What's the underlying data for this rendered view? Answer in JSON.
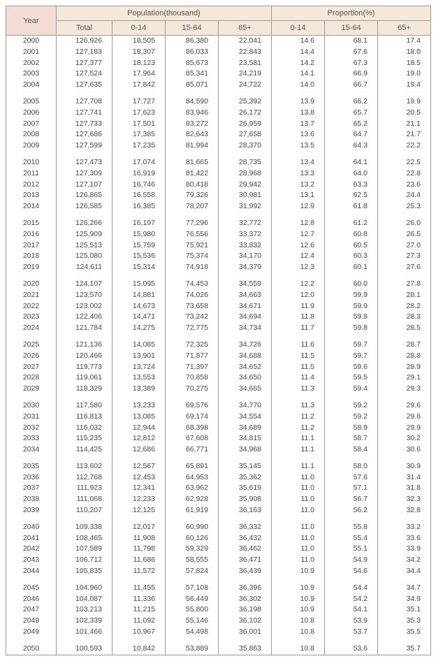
{
  "table": {
    "header": {
      "year": "Year",
      "population_group": "Population(thousand)",
      "proportion_group": "Proportion(%)",
      "total": "Total",
      "age_0_14": "0-14",
      "age_15_64": "15-64",
      "age_65p": "65+"
    },
    "style": {
      "header_bg": "#f4e8d8",
      "year_header_bg": "#f2dcd5",
      "border_color": "#999999",
      "text_color": "#444444",
      "font_size_body": 10.5,
      "font_size_header": 11,
      "row_height": 15.8,
      "spacer_height": 8,
      "col_widths": {
        "year": 72,
        "total": 80,
        "age": 76
      }
    },
    "groups": [
      [
        {
          "year": "2000",
          "total": "126,926",
          "p0": "18,505",
          "p1": "86,380",
          "p2": "22,041",
          "r0": "14.6",
          "r1": "68.1",
          "r2": "17.4"
        },
        {
          "year": "2001",
          "total": "127,183",
          "p0": "18,307",
          "p1": "86,033",
          "p2": "22,843",
          "r0": "14.4",
          "r1": "67.6",
          "r2": "18.0"
        },
        {
          "year": "2002",
          "total": "127,377",
          "p0": "18,123",
          "p1": "85,673",
          "p2": "23,581",
          "r0": "14.2",
          "r1": "67.3",
          "r2": "18.5"
        },
        {
          "year": "2003",
          "total": "127,524",
          "p0": "17,964",
          "p1": "85,341",
          "p2": "24,219",
          "r0": "14.1",
          "r1": "66.9",
          "r2": "19.0"
        },
        {
          "year": "2004",
          "total": "127,635",
          "p0": "17,842",
          "p1": "85,071",
          "p2": "24,722",
          "r0": "14.0",
          "r1": "66.7",
          "r2": "19.4"
        }
      ],
      [
        {
          "year": "2005",
          "total": "127,708",
          "p0": "17,727",
          "p1": "84,590",
          "p2": "25,392",
          "r0": "13.9",
          "r1": "66.2",
          "r2": "19.9"
        },
        {
          "year": "2006",
          "total": "127,741",
          "p0": "17,623",
          "p1": "83,946",
          "p2": "26,172",
          "r0": "13.8",
          "r1": "65.7",
          "r2": "20.5"
        },
        {
          "year": "2007",
          "total": "127,733",
          "p0": "17,501",
          "p1": "83,272",
          "p2": "26,959",
          "r0": "13.7",
          "r1": "65.2",
          "r2": "21.1"
        },
        {
          "year": "2008",
          "total": "127,686",
          "p0": "17,385",
          "p1": "82,643",
          "p2": "27,658",
          "r0": "13.6",
          "r1": "64.7",
          "r2": "21.7"
        },
        {
          "year": "2009",
          "total": "127,599",
          "p0": "17,235",
          "p1": "81,994",
          "p2": "28,370",
          "r0": "13.5",
          "r1": "64.3",
          "r2": "22.2"
        }
      ],
      [
        {
          "year": "2010",
          "total": "127,473",
          "p0": "17,074",
          "p1": "81,665",
          "p2": "28,735",
          "r0": "13.4",
          "r1": "64.1",
          "r2": "22.5"
        },
        {
          "year": "2011",
          "total": "127,309",
          "p0": "16,919",
          "p1": "81,422",
          "p2": "28,968",
          "r0": "13.3",
          "r1": "64.0",
          "r2": "22.8"
        },
        {
          "year": "2012",
          "total": "127,107",
          "p0": "16,746",
          "p1": "80,418",
          "p2": "29,942",
          "r0": "13.2",
          "r1": "63.3",
          "r2": "23.6"
        },
        {
          "year": "2013",
          "total": "126,865",
          "p0": "16,558",
          "p1": "79,326",
          "p2": "30,981",
          "r0": "13.1",
          "r1": "62.5",
          "r2": "24.4"
        },
        {
          "year": "2014",
          "total": "126,585",
          "p0": "16,385",
          "p1": "78,207",
          "p2": "31,992",
          "r0": "12.9",
          "r1": "61.8",
          "r2": "25.3"
        }
      ],
      [
        {
          "year": "2015",
          "total": "126,266",
          "p0": "16,197",
          "p1": "77,296",
          "p2": "32,772",
          "r0": "12.8",
          "r1": "61.2",
          "r2": "26.0"
        },
        {
          "year": "2016",
          "total": "125,909",
          "p0": "15,980",
          "p1": "76,556",
          "p2": "33,372",
          "r0": "12.7",
          "r1": "60.8",
          "r2": "26.5"
        },
        {
          "year": "2017",
          "total": "125,513",
          "p0": "15,759",
          "p1": "75,921",
          "p2": "33,832",
          "r0": "12.6",
          "r1": "60.5",
          "r2": "27.0"
        },
        {
          "year": "2018",
          "total": "125,080",
          "p0": "15,536",
          "p1": "75,374",
          "p2": "34,170",
          "r0": "12.4",
          "r1": "60.3",
          "r2": "27.3"
        },
        {
          "year": "2019",
          "total": "124,611",
          "p0": "15,314",
          "p1": "74,918",
          "p2": "34,379",
          "r0": "12.3",
          "r1": "60.1",
          "r2": "27.6"
        }
      ],
      [
        {
          "year": "2020",
          "total": "124,107",
          "p0": "15,095",
          "p1": "74,453",
          "p2": "34,559",
          "r0": "12.2",
          "r1": "60.0",
          "r2": "27.8"
        },
        {
          "year": "2021",
          "total": "123,570",
          "p0": "14,881",
          "p1": "74,026",
          "p2": "34,663",
          "r0": "12.0",
          "r1": "59.9",
          "r2": "28.1"
        },
        {
          "year": "2022",
          "total": "123,002",
          "p0": "14,673",
          "p1": "73,658",
          "p2": "34,671",
          "r0": "11.9",
          "r1": "59.9",
          "r2": "28.2"
        },
        {
          "year": "2023",
          "total": "122,406",
          "p0": "14,471",
          "p1": "73,242",
          "p2": "34,694",
          "r0": "11.8",
          "r1": "59.8",
          "r2": "28.3"
        },
        {
          "year": "2024",
          "total": "121,784",
          "p0": "14,275",
          "p1": "72,775",
          "p2": "34,734",
          "r0": "11.7",
          "r1": "59.8",
          "r2": "28.5"
        }
      ],
      [
        {
          "year": "2025",
          "total": "121,136",
          "p0": "14,085",
          "p1": "72,325",
          "p2": "34,726",
          "r0": "11.6",
          "r1": "59.7",
          "r2": "28.7"
        },
        {
          "year": "2026",
          "total": "120,466",
          "p0": "13,901",
          "p1": "71,877",
          "p2": "34,688",
          "r0": "11.5",
          "r1": "59.7",
          "r2": "28.8"
        },
        {
          "year": "2027",
          "total": "119,773",
          "p0": "13,724",
          "p1": "71,397",
          "p2": "34,652",
          "r0": "11.5",
          "r1": "59.6",
          "r2": "28.9"
        },
        {
          "year": "2028",
          "total": "119,061",
          "p0": "13,553",
          "p1": "70,858",
          "p2": "34,650",
          "r0": "11.4",
          "r1": "59.5",
          "r2": "29.1"
        },
        {
          "year": "2029",
          "total": "118,329",
          "p0": "13,389",
          "p1": "70,275",
          "p2": "34,665",
          "r0": "11.3",
          "r1": "59.4",
          "r2": "29.3"
        }
      ],
      [
        {
          "year": "2030",
          "total": "117,580",
          "p0": "13,233",
          "p1": "69,576",
          "p2": "34,770",
          "r0": "11.3",
          "r1": "59.2",
          "r2": "29.6"
        },
        {
          "year": "2031",
          "total": "116,813",
          "p0": "13,085",
          "p1": "69,174",
          "p2": "34,554",
          "r0": "11.2",
          "r1": "59.2",
          "r2": "29.6"
        },
        {
          "year": "2032",
          "total": "116,032",
          "p0": "12,944",
          "p1": "68,398",
          "p2": "34,689",
          "r0": "11.2",
          "r1": "58.9",
          "r2": "29.9"
        },
        {
          "year": "2033",
          "total": "115,235",
          "p0": "12,812",
          "p1": "67,608",
          "p2": "34,815",
          "r0": "11.1",
          "r1": "58.7",
          "r2": "30.2"
        },
        {
          "year": "2034",
          "total": "114,425",
          "p0": "12,686",
          "p1": "66,771",
          "p2": "34,968",
          "r0": "11.1",
          "r1": "58.4",
          "r2": "30.6"
        }
      ],
      [
        {
          "year": "2035",
          "total": "113,602",
          "p0": "12,567",
          "p1": "65,891",
          "p2": "35,145",
          "r0": "11.1",
          "r1": "58.0",
          "r2": "30.9"
        },
        {
          "year": "2036",
          "total": "112,768",
          "p0": "12,453",
          "p1": "64,953",
          "p2": "35,362",
          "r0": "11.0",
          "r1": "57.6",
          "r2": "31.4"
        },
        {
          "year": "2037",
          "total": "111,923",
          "p0": "12,341",
          "p1": "63,962",
          "p2": "35,619",
          "r0": "11.0",
          "r1": "57.1",
          "r2": "31.8"
        },
        {
          "year": "2038",
          "total": "111,068",
          "p0": "12,233",
          "p1": "62,928",
          "p2": "35,908",
          "r0": "11.0",
          "r1": "56.7",
          "r2": "32.3"
        },
        {
          "year": "2039",
          "total": "110,207",
          "p0": "12,125",
          "p1": "61,919",
          "p2": "36,163",
          "r0": "11.0",
          "r1": "56.2",
          "r2": "32.8"
        }
      ],
      [
        {
          "year": "2040",
          "total": "109,338",
          "p0": "12,017",
          "p1": "60,990",
          "p2": "36,332",
          "r0": "11.0",
          "r1": "55.8",
          "r2": "33.2"
        },
        {
          "year": "2041",
          "total": "108,465",
          "p0": "11,908",
          "p1": "60,126",
          "p2": "36,432",
          "r0": "11.0",
          "r1": "55.4",
          "r2": "33.6"
        },
        {
          "year": "2042",
          "total": "107,589",
          "p0": "11,798",
          "p1": "59,329",
          "p2": "36,462",
          "r0": "11.0",
          "r1": "55.1",
          "r2": "33.9"
        },
        {
          "year": "2043",
          "total": "106,712",
          "p0": "11,686",
          "p1": "58,555",
          "p2": "36,471",
          "r0": "11.0",
          "r1": "54.9",
          "r2": "34.2"
        },
        {
          "year": "2044",
          "total": "105,835",
          "p0": "11,572",
          "p1": "57,824",
          "p2": "36,439",
          "r0": "10.9",
          "r1": "54.6",
          "r2": "34.4"
        }
      ],
      [
        {
          "year": "2045",
          "total": "104,960",
          "p0": "11,455",
          "p1": "57,108",
          "p2": "36,396",
          "r0": "10.9",
          "r1": "54.4",
          "r2": "34.7"
        },
        {
          "year": "2046",
          "total": "104,087",
          "p0": "11,336",
          "p1": "56,449",
          "p2": "36,302",
          "r0": "10.9",
          "r1": "54.2",
          "r2": "34.9"
        },
        {
          "year": "2047",
          "total": "103,213",
          "p0": "11,215",
          "p1": "55,800",
          "p2": "36,198",
          "r0": "10.9",
          "r1": "54.1",
          "r2": "35.1"
        },
        {
          "year": "2048",
          "total": "102,339",
          "p0": "11,092",
          "p1": "55,146",
          "p2": "36,102",
          "r0": "10.8",
          "r1": "53.9",
          "r2": "35.3"
        },
        {
          "year": "2049",
          "total": "101,466",
          "p0": "10,967",
          "p1": "54,498",
          "p2": "36,001",
          "r0": "10.8",
          "r1": "53.7",
          "r2": "35.5"
        }
      ],
      [
        {
          "year": "2050",
          "total": "100,593",
          "p0": "10,842",
          "p1": "53,889",
          "p2": "35,863",
          "r0": "10.8",
          "r1": "53.6",
          "r2": "35.7"
        }
      ]
    ]
  }
}
